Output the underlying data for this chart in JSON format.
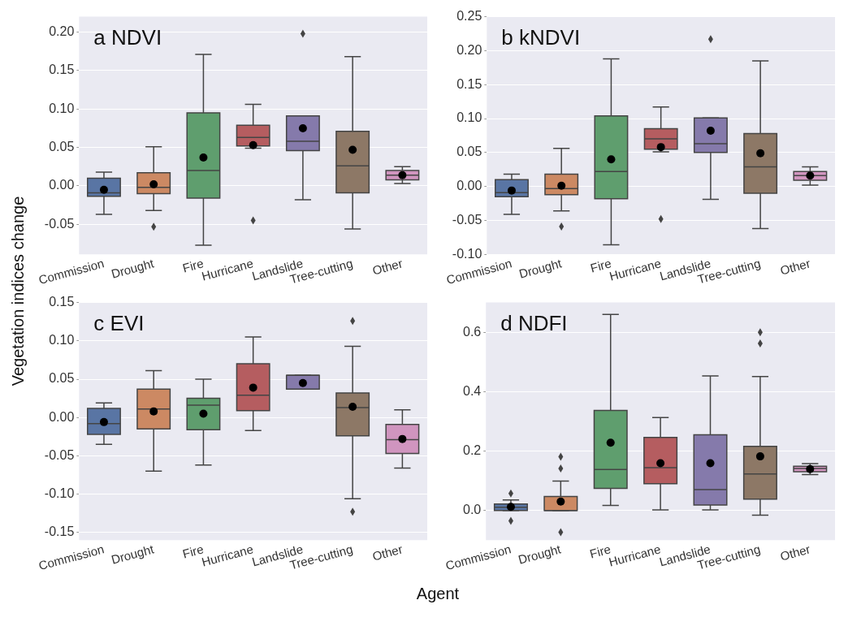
{
  "chart_data": [
    {
      "type": "box",
      "title": "a NDVI",
      "ylabel": "Vegetation indices change",
      "xlabel": "Agent",
      "categories": [
        "Commission",
        "Drought",
        "Fire",
        "Hurricane",
        "Landslide",
        "Tree-cutting",
        "Other"
      ],
      "colors": [
        "#5975a4",
        "#cc8963",
        "#5f9e6e",
        "#b55d60",
        "#857aab",
        "#8d7866",
        "#d095bf"
      ],
      "ylim": [
        -0.089,
        0.22
      ],
      "yticks": [
        {
          "value": -0.05,
          "label": "-0.05"
        },
        {
          "value": 0,
          "label": "0.00"
        },
        {
          "value": 0.05,
          "label": "0.05"
        },
        {
          "value": 0.1,
          "label": "0.10"
        },
        {
          "value": 0.15,
          "label": "0.15"
        },
        {
          "value": 0.2,
          "label": "0.20"
        }
      ],
      "grid": "y",
      "boxes": [
        {
          "low": -0.037,
          "q1": -0.0135,
          "median": -0.009,
          "q3": 0.01,
          "high": 0.018,
          "mean": -0.005
        },
        {
          "low": -0.032,
          "q1": -0.01,
          "median": -0.002,
          "q3": 0.017,
          "high": 0.051,
          "mean": 0.002,
          "outliers": [
            -0.053
          ]
        },
        {
          "low": -0.077,
          "q1": -0.016,
          "median": 0.02,
          "q3": 0.095,
          "high": 0.171,
          "mean": 0.037
        },
        {
          "low": 0.049,
          "q1": 0.052,
          "median": 0.063,
          "q3": 0.079,
          "high": 0.106,
          "mean": 0.053,
          "outliers": [
            -0.045
          ]
        },
        {
          "low": -0.018,
          "q1": 0.046,
          "median": 0.058,
          "q3": 0.091,
          "high": 0.091,
          "mean": 0.075,
          "outliers": [
            0.198
          ]
        },
        {
          "low": -0.056,
          "q1": -0.009,
          "median": 0.026,
          "q3": 0.071,
          "high": 0.168,
          "mean": 0.047
        },
        {
          "low": 0.003,
          "q1": 0.008,
          "median": 0.014,
          "q3": 0.02,
          "high": 0.025,
          "mean": 0.014
        }
      ]
    },
    {
      "type": "box",
      "title": "b kNDVI",
      "categories": [
        "Commission",
        "Drought",
        "Fire",
        "Hurricane",
        "Landslide",
        "Tree-cutting",
        "Other"
      ],
      "colors": [
        "#5975a4",
        "#cc8963",
        "#5f9e6e",
        "#b55d60",
        "#857aab",
        "#8d7866",
        "#d095bf"
      ],
      "ylim": [
        -0.1,
        0.25
      ],
      "yticks": [
        {
          "value": -0.1,
          "label": "-0.10"
        },
        {
          "value": -0.05,
          "label": "-0.05"
        },
        {
          "value": 0,
          "label": "0.00"
        },
        {
          "value": 0.05,
          "label": "0.05"
        },
        {
          "value": 0.1,
          "label": "0.10"
        },
        {
          "value": 0.15,
          "label": "0.15"
        },
        {
          "value": 0.2,
          "label": "0.20"
        },
        {
          "value": 0.25,
          "label": "0.25"
        }
      ],
      "grid": "y",
      "boxes": [
        {
          "low": -0.041,
          "q1": -0.015,
          "median": -0.009,
          "q3": 0.01,
          "high": 0.018,
          "mean": -0.006
        },
        {
          "low": -0.036,
          "q1": -0.012,
          "median": -0.003,
          "q3": 0.018,
          "high": 0.056,
          "mean": 0.001,
          "outliers": [
            -0.059
          ]
        },
        {
          "low": -0.086,
          "q1": -0.018,
          "median": 0.022,
          "q3": 0.104,
          "high": 0.188,
          "mean": 0.04
        },
        {
          "low": 0.051,
          "q1": 0.055,
          "median": 0.07,
          "q3": 0.085,
          "high": 0.117,
          "mean": 0.058,
          "outliers": [
            -0.048
          ]
        },
        {
          "low": -0.019,
          "q1": 0.05,
          "median": 0.063,
          "q3": 0.101,
          "high": 0.101,
          "mean": 0.082,
          "outliers": [
            0.217
          ]
        },
        {
          "low": -0.062,
          "q1": -0.01,
          "median": 0.029,
          "q3": 0.078,
          "high": 0.185,
          "mean": 0.049
        },
        {
          "low": 0.002,
          "q1": 0.009,
          "median": 0.016,
          "q3": 0.022,
          "high": 0.029,
          "mean": 0.016
        }
      ]
    },
    {
      "type": "box",
      "title": "c EVI",
      "categories": [
        "Commission",
        "Drought",
        "Fire",
        "Hurricane",
        "Landslide",
        "Tree-cutting",
        "Other"
      ],
      "colors": [
        "#5975a4",
        "#cc8963",
        "#5f9e6e",
        "#b55d60",
        "#857aab",
        "#8d7866",
        "#d095bf"
      ],
      "ylim": [
        -0.16,
        0.15
      ],
      "yticks": [
        {
          "value": -0.15,
          "label": "-0.15"
        },
        {
          "value": -0.1,
          "label": "-0.10"
        },
        {
          "value": -0.05,
          "label": "-0.05"
        },
        {
          "value": 0,
          "label": "0.00"
        },
        {
          "value": 0.05,
          "label": "0.05"
        },
        {
          "value": 0.1,
          "label": "0.10"
        },
        {
          "value": 0.15,
          "label": "0.15"
        }
      ],
      "grid": "y",
      "boxes": [
        {
          "low": -0.035,
          "q1": -0.022,
          "median": -0.008,
          "q3": 0.012,
          "high": 0.019,
          "mean": -0.006
        },
        {
          "low": -0.07,
          "q1": -0.015,
          "median": 0.011,
          "q3": 0.037,
          "high": 0.061,
          "mean": 0.008
        },
        {
          "low": -0.062,
          "q1": -0.016,
          "median": 0.016,
          "q3": 0.025,
          "high": 0.05,
          "mean": 0.005
        },
        {
          "low": -0.017,
          "q1": 0.009,
          "median": 0.029,
          "q3": 0.07,
          "high": 0.105,
          "mean": 0.039
        },
        {
          "low": 0.037,
          "q1": 0.037,
          "median": 0.055,
          "q3": 0.055,
          "high": 0.055,
          "mean": 0.045
        },
        {
          "low": -0.106,
          "q1": -0.024,
          "median": 0.013,
          "q3": 0.032,
          "high": 0.093,
          "mean": 0.014,
          "outliers": [
            0.126,
            -0.123
          ]
        },
        {
          "low": -0.066,
          "q1": -0.047,
          "median": -0.029,
          "q3": -0.009,
          "high": 0.01,
          "mean": -0.028
        }
      ]
    },
    {
      "type": "box",
      "title": "d NDFI",
      "categories": [
        "Commission",
        "Drought",
        "Fire",
        "Hurricane",
        "Landslide",
        "Tree-cutting",
        "Other"
      ],
      "colors": [
        "#5975a4",
        "#cc8963",
        "#5f9e6e",
        "#b55d60",
        "#857aab",
        "#8d7866",
        "#d095bf"
      ],
      "ylim": [
        -0.1,
        0.7
      ],
      "yticks": [
        {
          "value": 0,
          "label": "0.0"
        },
        {
          "value": 0.2,
          "label": "0.2"
        },
        {
          "value": 0.4,
          "label": "0.4"
        },
        {
          "value": 0.6,
          "label": "0.6"
        }
      ],
      "grid": "y",
      "boxes": [
        {
          "low": 0,
          "q1": 0,
          "median": 0.011,
          "q3": 0.022,
          "high": 0.035,
          "mean": 0.012,
          "outliers": [
            0.057,
            -0.035
          ]
        },
        {
          "low": 0,
          "q1": 0,
          "median": 0,
          "q3": 0.047,
          "high": 0.099,
          "mean": 0.03,
          "outliers": [
            0.181,
            0.141,
            -0.073
          ]
        },
        {
          "low": 0.017,
          "q1": 0.074,
          "median": 0.138,
          "q3": 0.337,
          "high": 0.66,
          "mean": 0.228
        },
        {
          "low": 0.002,
          "q1": 0.09,
          "median": 0.144,
          "q3": 0.246,
          "high": 0.313,
          "mean": 0.159
        },
        {
          "low": 0.002,
          "q1": 0.018,
          "median": 0.07,
          "q3": 0.255,
          "high": 0.453,
          "mean": 0.159
        },
        {
          "low": -0.016,
          "q1": 0.038,
          "median": 0.123,
          "q3": 0.216,
          "high": 0.451,
          "mean": 0.182,
          "outliers": [
            0.6,
            0.562
          ]
        },
        {
          "low": 0.121,
          "q1": 0.13,
          "median": 0.141,
          "q3": 0.149,
          "high": 0.158,
          "mean": 0.139
        }
      ]
    }
  ]
}
